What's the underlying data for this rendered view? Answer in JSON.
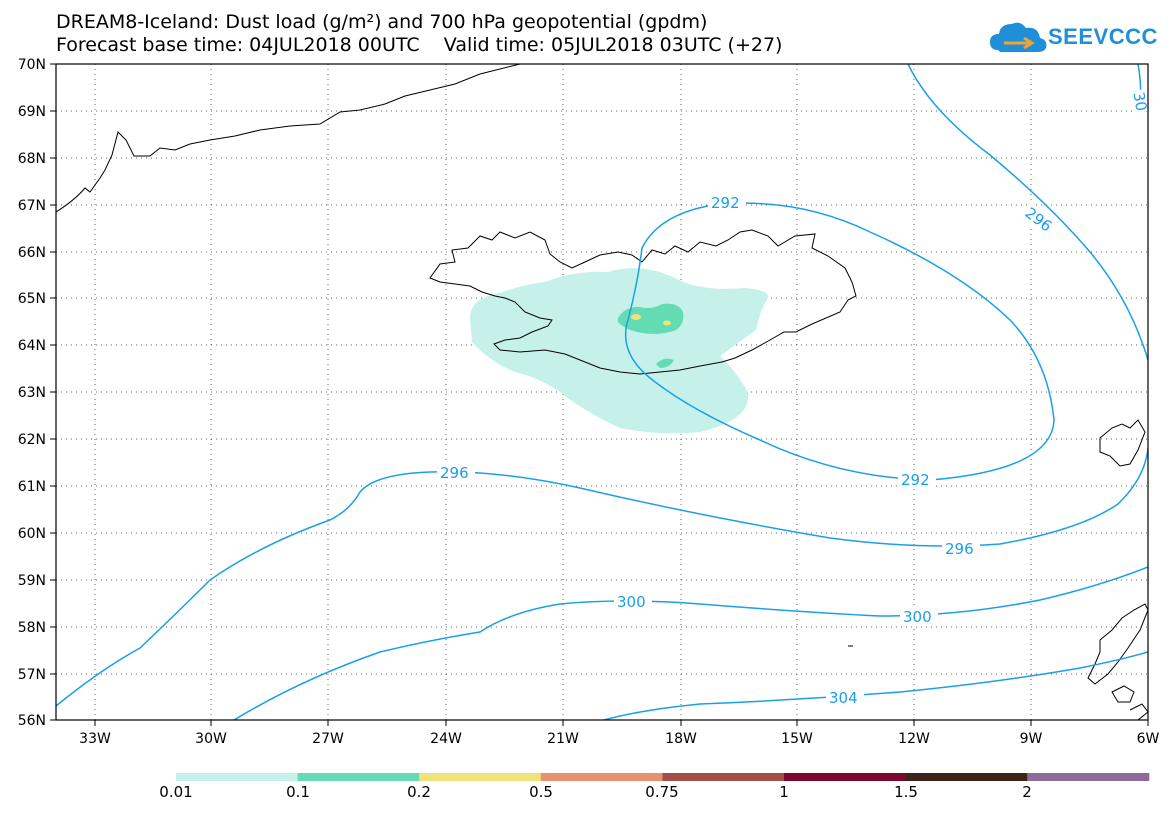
{
  "title_line1": "DREAM8-Iceland: Dust load (g/m²) and 700 hPa geopotential (gpdm)",
  "title_line2": "Forecast base time: 04JUL2018 00UTC    Valid time: 05JUL2018 03UTC (+27)",
  "logo_text": "SEEVCCC",
  "lat_labels": [
    "70N",
    "69N",
    "68N",
    "67N",
    "66N",
    "65N",
    "64N",
    "63N",
    "62N",
    "61N",
    "60N",
    "59N",
    "58N",
    "57N",
    "56N"
  ],
  "lon_labels": [
    "33W",
    "30W",
    "27W",
    "24W",
    "21W",
    "18W",
    "15W",
    "12W",
    "9W",
    "6W"
  ],
  "contour_labels": [
    "292",
    "292",
    "296",
    "296",
    "296",
    "300",
    "300",
    "304",
    "30"
  ],
  "colorbar": {
    "labels": [
      "0.01",
      "0.1",
      "0.2",
      "0.5",
      "0.75",
      "1",
      "1.5",
      "2"
    ],
    "colors": [
      "#c6f1ea",
      "#63dcb4",
      "#f2e27a",
      "#e59270",
      "#a34e48",
      "#7c0a2c",
      "#3c2416",
      "#8e6b9a"
    ]
  },
  "colors": {
    "contour": "#1aa0e8",
    "coast": "#000000"
  }
}
